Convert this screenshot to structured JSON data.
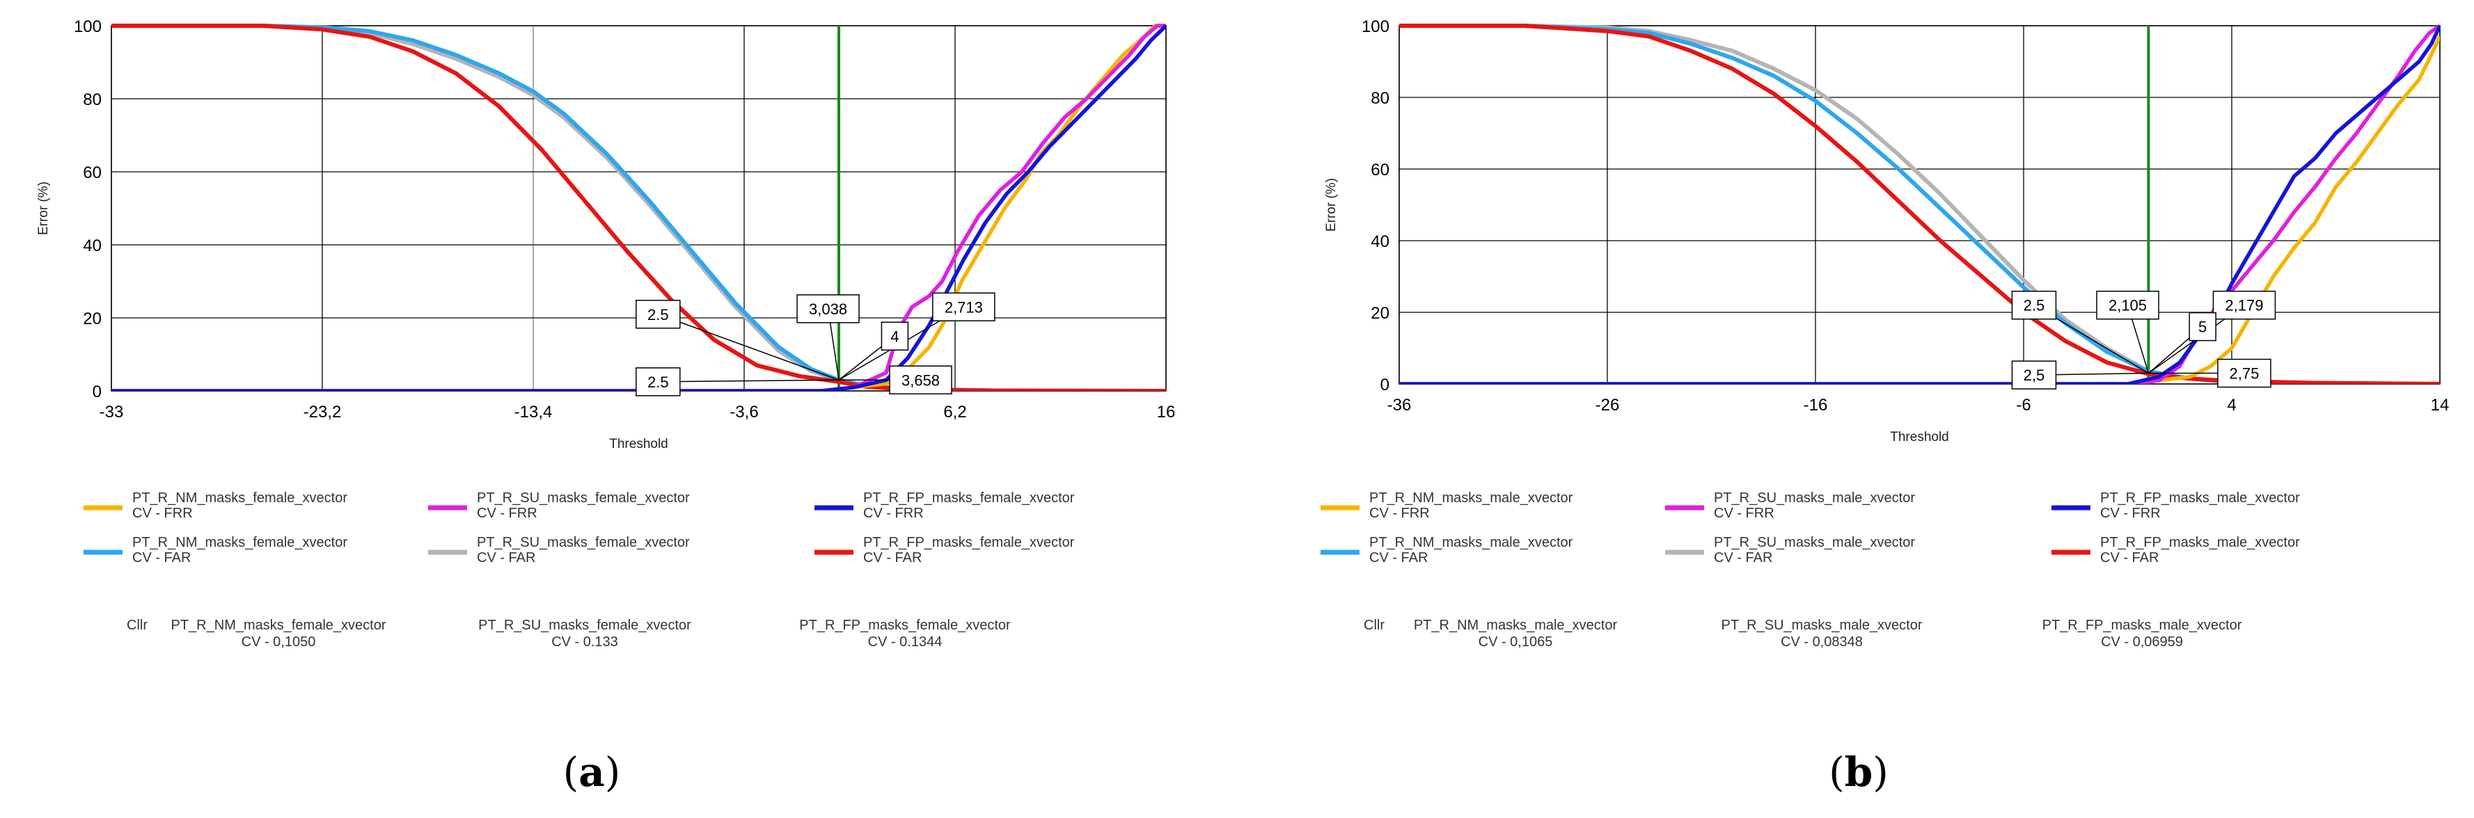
{
  "panels": [
    {
      "caption_letter": "a",
      "chart_data": {
        "type": "line",
        "title": "",
        "xlabel": "Threshold",
        "ylabel": "Error (%)",
        "xlim": [
          -33,
          16
        ],
        "ylim": [
          0,
          100
        ],
        "xticks": [
          "-33",
          "-23,2",
          "-13,4",
          "-3,6",
          "6,2",
          "16"
        ],
        "xtick_values": [
          -33,
          -23.2,
          -13.4,
          -3.6,
          6.2,
          16
        ],
        "yticks": [
          "0",
          "20",
          "40",
          "60",
          "80",
          "100"
        ],
        "ytick_values": [
          0,
          20,
          40,
          60,
          80,
          100
        ],
        "vline": {
          "x": 0.8,
          "color": "#1a8a1a"
        },
        "highlight_gridline_x": -13.4,
        "series": [
          {
            "name": "PT_R_NM_masks_female_xvector",
            "subtitle": "CV - FRR",
            "color": "#f5b400",
            "kind": "FRR",
            "x": [
              -33,
              0,
              1.5,
              3,
              4,
              5,
              5.8,
              6.5,
              7.5,
              8.5,
              9.5,
              10.2,
              11,
              12,
              13,
              14,
              15,
              15.5,
              16
            ],
            "y": [
              0,
              0,
              1,
              2,
              6,
              12,
              20,
              30,
              40,
              50,
              58,
              65,
              70,
              78,
              85,
              92,
              97,
              100,
              100
            ]
          },
          {
            "name": "PT_R_SU_masks_female_xvector",
            "subtitle": "CV - FRR",
            "color": "#e020e0",
            "kind": "FRR",
            "x": [
              -33,
              0,
              1.5,
              3,
              3.6,
              4.2,
              5,
              5.6,
              6.3,
              7.3,
              8.3,
              9.3,
              10.3,
              11.3,
              12.3,
              13.3,
              14.3,
              15,
              15.6,
              16
            ],
            "y": [
              0,
              0,
              1,
              5,
              17,
              23,
              26,
              30,
              38,
              48,
              55,
              60,
              68,
              75,
              80,
              86,
              92,
              97,
              100,
              100
            ]
          },
          {
            "name": "PT_R_FP_masks_female_xvector",
            "subtitle": "CV - FRR",
            "color": "#1414d8",
            "kind": "FRR",
            "x": [
              -33,
              0,
              1.5,
              3,
              4,
              5,
              5.8,
              6.6,
              7.6,
              8.6,
              9.6,
              10.6,
              11.6,
              12.6,
              13.6,
              14.6,
              15.3,
              16
            ],
            "y": [
              0,
              0,
              1,
              3,
              9,
              18,
              27,
              36,
              46,
              54,
              60,
              67,
              73,
              79,
              85,
              91,
              96,
              100
            ]
          },
          {
            "name": "PT_R_NM_masks_female_xvector",
            "subtitle": "CV - FAR",
            "color": "#2ea6ee",
            "kind": "FAR",
            "x": [
              -33,
              -26,
              -23,
              -21,
              -19,
              -17,
              -15,
              -13.4,
              -12,
              -10,
              -8,
              -6,
              -4,
              -2,
              -0.5,
              0.8,
              2,
              4,
              8,
              16
            ],
            "y": [
              100,
              100,
              99.5,
              98.5,
              96,
              92,
              87,
              82,
              76,
              65,
              52,
              38,
              24,
              12,
              6,
              3,
              1.5,
              0.5,
              0.1,
              0
            ]
          },
          {
            "name": "PT_R_SU_masks_female_xvector",
            "subtitle": "CV - FAR",
            "color": "#b4b4b4",
            "kind": "FAR",
            "x": [
              -33,
              -26,
              -23,
              -21,
              -19,
              -17,
              -15,
              -13.4,
              -12,
              -10,
              -8,
              -6,
              -4,
              -2,
              -0.5,
              0.8,
              2,
              4,
              8,
              16
            ],
            "y": [
              100,
              100,
              99.5,
              98,
              95,
              91,
              86,
              81,
              75,
              64,
              51,
              37,
              23,
              11,
              5.5,
              3,
              1.5,
              0.5,
              0.1,
              0
            ]
          },
          {
            "name": "PT_R_FP_masks_female_xvector",
            "subtitle": "CV - FAR",
            "color": "#e81414",
            "kind": "FAR",
            "x": [
              -33,
              -26,
              -23.2,
              -21,
              -19,
              -17,
              -15,
              -13,
              -11,
              -9,
              -7,
              -5,
              -3,
              -1,
              0.8,
              2,
              4,
              8,
              16
            ],
            "y": [
              100,
              100,
              99,
              97,
              93,
              87,
              78,
              66,
              52,
              38,
              25,
              14,
              7,
              4,
              2.5,
              1.2,
              0.4,
              0.1,
              0
            ]
          }
        ],
        "annotations": [
          {
            "text": "2.5",
            "lx": -7.6,
            "ly": 21
          },
          {
            "text": "3,038",
            "lx": 0.3,
            "ly": 22.5
          },
          {
            "text": "2,713",
            "lx": 6.6,
            "ly": 23
          },
          {
            "text": "4",
            "lx": 3.4,
            "ly": 15
          },
          {
            "text": "2.5",
            "lx": -7.6,
            "ly": 2.5
          },
          {
            "text": "3,658",
            "lx": 4.6,
            "ly": 3
          }
        ],
        "annotation_target": {
          "x": 0.8,
          "y": 3
        },
        "legend": {
          "placement": "bottom",
          "columns": 3
        },
        "cllr": {
          "label": "Cllr",
          "entries": [
            {
              "name": "PT_R_NM_masks_female_xvector",
              "value": "CV - 0,1050"
            },
            {
              "name": "PT_R_SU_masks_female_xvector",
              "value": "CV - 0.133"
            },
            {
              "name": "PT_R_FP_masks_female_xvector",
              "value": "CV - 0.1344"
            }
          ]
        }
      }
    },
    {
      "caption_letter": "b",
      "chart_data": {
        "type": "line",
        "title": "",
        "xlabel": "Threshold",
        "ylabel": "Error (%)",
        "xlim": [
          -36,
          14
        ],
        "ylim": [
          0,
          100
        ],
        "xticks": [
          "-36",
          "-26",
          "-16",
          "-6",
          "4",
          "14"
        ],
        "xtick_values": [
          -36,
          -26,
          -16,
          -6,
          4,
          14
        ],
        "yticks": [
          "0",
          "20",
          "40",
          "60",
          "80",
          "100"
        ],
        "ytick_values": [
          0,
          20,
          40,
          60,
          80,
          100
        ],
        "vline": {
          "x": 0,
          "color": "#1a8a1a"
        },
        "highlight_gridline_x": null,
        "series": [
          {
            "name": "PT_R_NM_masks_male_xvector",
            "subtitle": "CV - FRR",
            "color": "#f5b400",
            "kind": "FRR",
            "x": [
              -36,
              -1,
              0.5,
              2,
              3,
              4,
              5,
              6,
              7,
              8,
              9,
              10,
              11,
              12,
              13,
              13.6,
              14
            ],
            "y": [
              0,
              0,
              1,
              2,
              5,
              10,
              20,
              30,
              38,
              45,
              55,
              62,
              70,
              78,
              85,
              92,
              97
            ]
          },
          {
            "name": "PT_R_SU_masks_male_xvector",
            "subtitle": "CV - FRR",
            "color": "#e020e0",
            "kind": "FRR",
            "x": [
              -36,
              -1,
              0.5,
              1.5,
              2.5,
              3.3,
              4,
              5,
              6,
              7,
              8,
              9,
              10,
              11,
              12,
              12.8,
              13.5,
              14
            ],
            "y": [
              0,
              0,
              1,
              5,
              15,
              22,
              26,
              33,
              40,
              48,
              55,
              63,
              70,
              78,
              86,
              93,
              98,
              100
            ]
          },
          {
            "name": "PT_R_FP_masks_male_xvector",
            "subtitle": "CV - FRR",
            "color": "#1414d8",
            "kind": "FRR",
            "x": [
              -36,
              -1,
              0.5,
              1.5,
              2.5,
              3.3,
              4,
              5,
              6,
              7,
              8,
              9,
              10,
              11,
              12,
              13,
              13.6,
              14
            ],
            "y": [
              0,
              0,
              2,
              6,
              14,
              20,
              28,
              38,
              48,
              58,
              63,
              70,
              75,
              80,
              85,
              90,
              95,
              100
            ]
          },
          {
            "name": "PT_R_NM_masks_male_xvector",
            "subtitle": "CV - FAR",
            "color": "#2ea6ee",
            "kind": "FAR",
            "x": [
              -36,
              -30,
              -26,
              -24,
              -22,
              -20,
              -18,
              -16,
              -14,
              -12,
              -10,
              -8,
              -6,
              -4,
              -2,
              0,
              2,
              4,
              8,
              14
            ],
            "y": [
              100,
              100,
              99,
              98,
              95,
              91,
              86,
              79,
              70,
              60,
              49,
              38,
              27,
              17,
              9,
              3.5,
              1.5,
              0.5,
              0.1,
              0
            ]
          },
          {
            "name": "PT_R_SU_masks_male_xvector",
            "subtitle": "CV - FAR",
            "color": "#b4b4b4",
            "kind": "FAR",
            "x": [
              -36,
              -30,
              -26,
              -24,
              -22,
              -20,
              -18,
              -16,
              -14,
              -12,
              -10,
              -8,
              -6,
              -4,
              -2,
              0,
              2,
              4,
              8,
              14
            ],
            "y": [
              100,
              100,
              99.5,
              98.5,
              96,
              93,
              88,
              82,
              74,
              64,
              53,
              41,
              29,
              18,
              10,
              3.5,
              1.5,
              0.5,
              0.1,
              0
            ]
          },
          {
            "name": "PT_R_FP_masks_male_xvector",
            "subtitle": "CV - FAR",
            "color": "#e81414",
            "kind": "FAR",
            "x": [
              -36,
              -30,
              -26,
              -24,
              -22,
              -20,
              -18,
              -16,
              -14,
              -12,
              -10,
              -8,
              -6,
              -4,
              -2,
              0,
              2,
              4,
              8,
              14
            ],
            "y": [
              100,
              100,
              98.5,
              97,
              93,
              88,
              81,
              72,
              62,
              51,
              40,
              30,
              20,
              12,
              6,
              2.8,
              1.5,
              0.8,
              0.3,
              0
            ]
          }
        ],
        "annotations": [
          {
            "text": "2.5",
            "lx": -5.5,
            "ly": 22
          },
          {
            "text": "2,105",
            "lx": -1,
            "ly": 22
          },
          {
            "text": "2,179",
            "lx": 4.6,
            "ly": 22
          },
          {
            "text": "5",
            "lx": 2.6,
            "ly": 16
          },
          {
            "text": "2,5",
            "lx": -5.5,
            "ly": 2.5
          },
          {
            "text": "2,75",
            "lx": 4.6,
            "ly": 3
          }
        ],
        "annotation_target": {
          "x": 0,
          "y": 3
        },
        "legend": {
          "placement": "bottom",
          "columns": 3
        },
        "cllr": {
          "label": "Cllr",
          "entries": [
            {
              "name": "PT_R_NM_masks_male_xvector",
              "value": "CV - 0,1065"
            },
            {
              "name": "PT_R_SU_masks_male_xvector",
              "value": "CV - 0,08348"
            },
            {
              "name": "PT_R_FP_masks_male_xvector",
              "value": "CV - 0,06959"
            }
          ]
        }
      }
    }
  ]
}
